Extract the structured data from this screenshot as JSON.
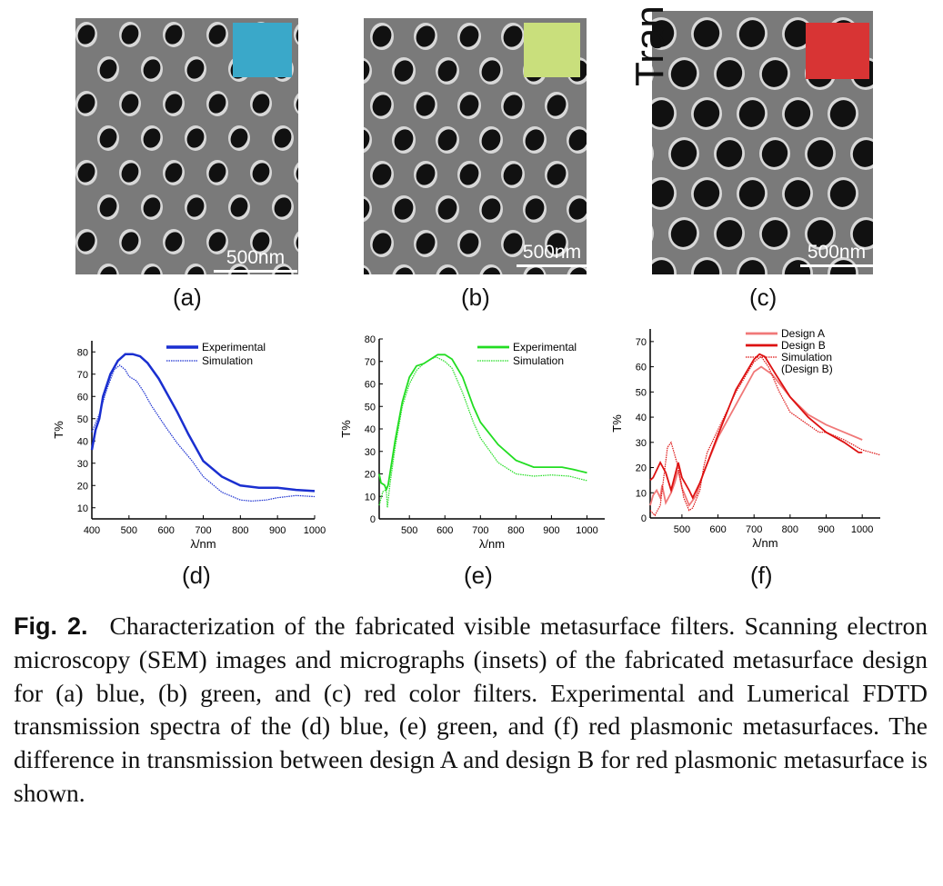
{
  "panels": [
    {
      "label": "(a)",
      "scale_bar": "500nm",
      "inset_color": "#3aa8c9",
      "filter": "blue"
    },
    {
      "label": "(b)",
      "scale_bar": "500nm",
      "inset_color": "#c9df7c",
      "filter": "green"
    },
    {
      "label": "(c)",
      "scale_bar": "500nm",
      "inset_color": "#d83434",
      "filter": "red",
      "overlay_text": "Tran"
    }
  ],
  "chart_labels": [
    "(d)",
    "(e)",
    "(f)"
  ],
  "chart_data": [
    {
      "type": "line",
      "xlabel": "λ/nm",
      "ylabel": "T%",
      "xlim": [
        400,
        1000
      ],
      "ylim": [
        5,
        85
      ],
      "xticks": [
        400,
        500,
        600,
        700,
        800,
        900,
        1000
      ],
      "yticks": [
        10,
        20,
        30,
        40,
        50,
        60,
        70,
        80
      ],
      "legend": "top-right",
      "series": [
        {
          "name": "Experimental",
          "color": "#1a2fd0",
          "style": "solid",
          "x": [
            400,
            410,
            420,
            430,
            450,
            470,
            490,
            510,
            530,
            550,
            580,
            600,
            630,
            660,
            700,
            750,
            800,
            850,
            900,
            950,
            1000
          ],
          "y": [
            36,
            45,
            50,
            60,
            70,
            76,
            79,
            79,
            78,
            75,
            68,
            62,
            53,
            43,
            31,
            24,
            20,
            19,
            19,
            18,
            17.5
          ]
        },
        {
          "name": "Simulation",
          "color": "#1a2fd0",
          "style": "dotted",
          "x": [
            400,
            420,
            440,
            460,
            475,
            490,
            500,
            520,
            540,
            560,
            600,
            630,
            670,
            700,
            750,
            800,
            830,
            870,
            900,
            950,
            1000
          ],
          "y": [
            44,
            52,
            63,
            72,
            74,
            72,
            69,
            67,
            62,
            56,
            46,
            39,
            31,
            24,
            17,
            13.5,
            13,
            13.5,
            14.5,
            15.5,
            15
          ]
        }
      ]
    },
    {
      "type": "line",
      "xlabel": "λ/nm",
      "ylabel": "T%",
      "xlim": [
        415,
        1050
      ],
      "ylim": [
        0,
        80
      ],
      "xticks": [
        500,
        600,
        700,
        800,
        900,
        1000
      ],
      "yticks": [
        0,
        10,
        20,
        30,
        40,
        50,
        60,
        70,
        80
      ],
      "legend": "top-right",
      "series": [
        {
          "name": "Experimental",
          "color": "#22dd22",
          "style": "solid",
          "x": [
            415,
            420,
            430,
            435,
            440,
            460,
            480,
            500,
            520,
            540,
            560,
            580,
            600,
            620,
            650,
            680,
            700,
            750,
            800,
            850,
            900,
            930,
            960,
            1000
          ],
          "y": [
            20,
            16,
            15,
            13,
            15,
            35,
            52,
            63,
            68,
            69,
            71,
            73,
            73,
            71,
            63,
            50,
            43,
            33,
            26,
            23,
            23,
            23,
            22,
            20.5
          ]
        },
        {
          "name": "Simulation",
          "color": "#22dd22",
          "style": "dotted",
          "x": [
            415,
            425,
            435,
            438,
            445,
            460,
            480,
            500,
            520,
            540,
            560,
            575,
            600,
            620,
            650,
            680,
            700,
            750,
            800,
            850,
            900,
            950,
            1000
          ],
          "y": [
            6,
            12,
            13,
            5,
            15,
            32,
            50,
            60,
            66,
            69,
            71,
            72,
            70,
            67,
            56,
            43,
            36,
            25,
            20,
            19,
            19.5,
            19,
            17
          ]
        }
      ]
    },
    {
      "type": "line",
      "xlabel": "λ/nm",
      "ylabel": "T%",
      "xlim": [
        412,
        1050
      ],
      "ylim": [
        0,
        75
      ],
      "xticks": [
        500,
        600,
        700,
        800,
        900,
        1000
      ],
      "yticks": [
        0,
        10,
        20,
        30,
        40,
        50,
        60,
        70
      ],
      "legend": "top-right",
      "series": [
        {
          "name": "Design A",
          "color": "#f07878",
          "style": "solid",
          "x": [
            412,
            420,
            430,
            440,
            445,
            455,
            470,
            480,
            490,
            500,
            520,
            540,
            560,
            600,
            650,
            700,
            720,
            750,
            800,
            850,
            900,
            950,
            1000
          ],
          "y": [
            5,
            9,
            11,
            8,
            13,
            6,
            10,
            14,
            19,
            12,
            5,
            9,
            18,
            32,
            45,
            58,
            60,
            57,
            48,
            41,
            37,
            34,
            31
          ]
        },
        {
          "name": "Design B",
          "color": "#dd1111",
          "style": "solid",
          "x": [
            412,
            420,
            440,
            455,
            470,
            490,
            500,
            520,
            530,
            550,
            600,
            650,
            700,
            715,
            730,
            760,
            800,
            850,
            900,
            950,
            990,
            1000
          ],
          "y": [
            15,
            16,
            22,
            18,
            11,
            22,
            16,
            11,
            8,
            14,
            33,
            51,
            63,
            65,
            64,
            57,
            48,
            40,
            34,
            30,
            26,
            26
          ]
        },
        {
          "name": "Simulation (Design B)",
          "legend_lines": [
            "Simulation",
            "(Design B)"
          ],
          "color": "#dd1111",
          "style": "dotted",
          "x": [
            412,
            425,
            440,
            460,
            470,
            480,
            490,
            505,
            520,
            530,
            550,
            560,
            570,
            600,
            650,
            700,
            720,
            740,
            770,
            800,
            850,
            880,
            900,
            950,
            1000,
            1050
          ],
          "y": [
            3,
            1,
            5,
            28,
            30,
            25,
            20,
            8,
            3,
            4,
            11,
            20,
            26,
            35,
            50,
            62,
            64,
            60,
            50,
            42,
            37,
            34,
            34,
            31,
            27,
            25
          ]
        }
      ]
    }
  ],
  "caption": {
    "fig_label": "Fig. 2.",
    "text": "Characterization of the fabricated visible metasurface filters. Scanning electron microscopy (SEM) images and micrographs (insets) of the fabricated metasurface design for (a) blue, (b) green, and (c) red color filters. Experimental and Lumerical FDTD transmission spectra of the (d) blue, (e) green, and (f) red plasmonic metasurfaces. The difference in transmission between design A and design B for red plasmonic metasurface is shown."
  }
}
